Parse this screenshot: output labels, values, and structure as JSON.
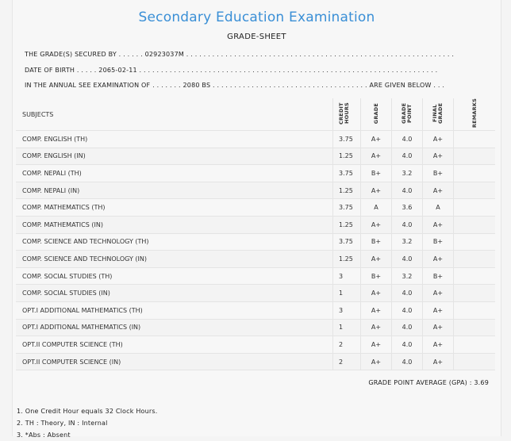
{
  "header": {
    "title": "Secondary Education Examination",
    "subtitle": "GRADE-SHEET"
  },
  "info": {
    "line1": "THE GRADE(S) SECURED BY . . . . . . 02923037M . . . . . . . . . . . . . . . . . . . . . . . . . . . . . . . . . . . . . . . . . . . . . . . . . . . . . . . . . . . . . .",
    "line2": "DATE OF BIRTH . . . . . 2065-02-11 . . . . . . . . . . . . . . . . . . . . . . . . . . . . . . . . . . . . . . . . . . . . . . . . . . . . . . . . . . . . . . . . . . . . .",
    "line3": "IN THE ANNUAL SEE EXAMINATION OF . . . . . . . 2080 BS . . . . . . . . . . . . . . . . . . . . . . . . . . . . . . . . . . . . ARE GIVEN BELOW . . ."
  },
  "table": {
    "headers": {
      "subjects": "SUBJECTS",
      "credit_hours": "CREDIT HOURS",
      "grade": "GRADE",
      "grade_point": "GRADE POINT",
      "final_grade": "FINAL GRADE",
      "remarks": "REMARKS"
    },
    "rows": [
      {
        "subject": "COMP. ENGLISH (TH)",
        "credit": "3.75",
        "grade": "A+",
        "point": "4.0",
        "final": "A+",
        "remarks": ""
      },
      {
        "subject": "COMP. ENGLISH (IN)",
        "credit": "1.25",
        "grade": "A+",
        "point": "4.0",
        "final": "A+",
        "remarks": ""
      },
      {
        "subject": "COMP. NEPALI (TH)",
        "credit": "3.75",
        "grade": "B+",
        "point": "3.2",
        "final": "B+",
        "remarks": ""
      },
      {
        "subject": "COMP. NEPALI (IN)",
        "credit": "1.25",
        "grade": "A+",
        "point": "4.0",
        "final": "A+",
        "remarks": ""
      },
      {
        "subject": "COMP. MATHEMATICS (TH)",
        "credit": "3.75",
        "grade": "A",
        "point": "3.6",
        "final": "A",
        "remarks": ""
      },
      {
        "subject": "COMP. MATHEMATICS (IN)",
        "credit": "1.25",
        "grade": "A+",
        "point": "4.0",
        "final": "A+",
        "remarks": ""
      },
      {
        "subject": "COMP. SCIENCE AND TECHNOLOGY (TH)",
        "credit": "3.75",
        "grade": "B+",
        "point": "3.2",
        "final": "B+",
        "remarks": ""
      },
      {
        "subject": "COMP. SCIENCE AND TECHNOLOGY (IN)",
        "credit": "1.25",
        "grade": "A+",
        "point": "4.0",
        "final": "A+",
        "remarks": ""
      },
      {
        "subject": "COMP. SOCIAL STUDIES (TH)",
        "credit": "3",
        "grade": "B+",
        "point": "3.2",
        "final": "B+",
        "remarks": ""
      },
      {
        "subject": "COMP. SOCIAL STUDIES (IN)",
        "credit": "1",
        "grade": "A+",
        "point": "4.0",
        "final": "A+",
        "remarks": ""
      },
      {
        "subject": "OPT.I ADDITIONAL MATHEMATICS (TH)",
        "credit": "3",
        "grade": "A+",
        "point": "4.0",
        "final": "A+",
        "remarks": ""
      },
      {
        "subject": "OPT.I ADDITIONAL MATHEMATICS (IN)",
        "credit": "1",
        "grade": "A+",
        "point": "4.0",
        "final": "A+",
        "remarks": ""
      },
      {
        "subject": "OPT.II COMPUTER SCIENCE (TH)",
        "credit": "2",
        "grade": "A+",
        "point": "4.0",
        "final": "A+",
        "remarks": ""
      },
      {
        "subject": "OPT.II COMPUTER SCIENCE (IN)",
        "credit": "2",
        "grade": "A+",
        "point": "4.0",
        "final": "A+",
        "remarks": ""
      }
    ]
  },
  "summary": {
    "gpa_text": "GRADE POINT AVERAGE (GPA) : 3.69"
  },
  "notes": [
    "1. One Credit Hour equals 32 Clock Hours.",
    "2. TH : Theory, IN : Internal",
    "3. *Abs : Absent"
  ]
}
